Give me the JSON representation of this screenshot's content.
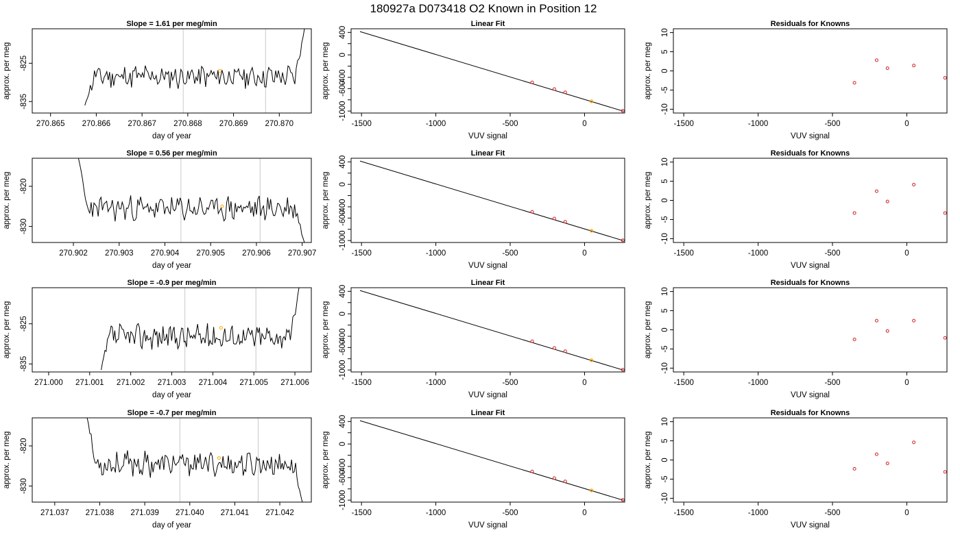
{
  "figure_title": "180927a     D073418   O2 Known in Position  12",
  "colors": {
    "trace": "#000000",
    "frame": "#000000",
    "vline": "#c8c8c8",
    "highlight": "#ffa500",
    "residual": "#d02020"
  },
  "chart_data": [
    {
      "type": "line",
      "panel": "time-series",
      "row": 0,
      "title": "Slope =  1.61  per meg/min",
      "xlabel": "day of year",
      "ylabel": "approx. per meg",
      "xlim": [
        270.8646,
        270.8707
      ],
      "ylim": [
        -838,
        -816
      ],
      "xticks": [
        270.865,
        270.866,
        270.867,
        270.868,
        270.869,
        270.87
      ],
      "xtick_labels": [
        "270.865",
        "270.866",
        "270.867",
        "270.868",
        "270.869",
        "270.870"
      ],
      "yticks": [
        -835,
        -825
      ],
      "ytick_labels": [
        "-835",
        "-825"
      ],
      "vlines": [
        270.8679,
        270.8697
      ],
      "trace": {
        "x_start": 270.86575,
        "x_end": 270.87055,
        "baseline": -828.5,
        "start_value": -836,
        "end_value": -816,
        "amplitude": 2.6,
        "seed": 11
      },
      "highlight_point": {
        "x": 270.8687,
        "y": -827
      }
    },
    {
      "type": "line",
      "panel": "linear-fit",
      "row": 0,
      "title": "Linear Fit",
      "xlabel": "VUV signal",
      "ylabel": "approx. per meg",
      "xlim": [
        -1570,
        270
      ],
      "ylim": [
        -1035,
        465
      ],
      "xticks": [
        -1500,
        -1000,
        -500,
        0
      ],
      "xtick_labels": [
        "-1500",
        "-1000",
        "-500",
        "0"
      ],
      "yticks": [
        -1000,
        -800,
        -600,
        -400,
        -200,
        0,
        200,
        400
      ],
      "ytick_labels": [
        "-1000",
        "",
        "-600",
        "-400",
        "",
        "0",
        "",
        "400"
      ],
      "line": {
        "x": [
          -1510,
          258
        ],
        "y": [
          415,
          -1000
        ]
      },
      "points": [
        {
          "x": -352,
          "y": -489,
          "color": "#d02020"
        },
        {
          "x": -203,
          "y": -608,
          "color": "#d02020"
        },
        {
          "x": -130,
          "y": -666,
          "color": "#d02020"
        },
        {
          "x": 257,
          "y": -996,
          "color": "#d02020"
        }
      ],
      "highlight_point": {
        "x": 47,
        "y": -826
      }
    },
    {
      "type": "scatter",
      "panel": "residuals",
      "row": 0,
      "title": "Residuals for Knowns",
      "xlabel": "VUV signal",
      "ylabel": "approx. per meg",
      "xlim": [
        -1570,
        270
      ],
      "ylim": [
        -11,
        11
      ],
      "xticks": [
        -1500,
        -1000,
        -500,
        0
      ],
      "xtick_labels": [
        "-1500",
        "-1000",
        "-500",
        "0"
      ],
      "yticks": [
        -10,
        -5,
        0,
        5,
        10
      ],
      "ytick_labels": [
        "-10",
        "-5",
        "0",
        "5",
        "10"
      ],
      "points": [
        {
          "x": -352,
          "y": -3.1
        },
        {
          "x": -203,
          "y": 2.8
        },
        {
          "x": -130,
          "y": 0.7
        },
        {
          "x": 47,
          "y": 1.4
        },
        {
          "x": 257,
          "y": -1.8
        }
      ]
    },
    {
      "type": "line",
      "panel": "time-series",
      "row": 1,
      "title": "Slope =  0.56  per meg/min",
      "xlabel": "day of year",
      "ylabel": "approx. per meg",
      "xlim": [
        270.9011,
        270.9072
      ],
      "ylim": [
        -834,
        -813
      ],
      "xticks": [
        270.902,
        270.903,
        270.904,
        270.905,
        270.906,
        270.907
      ],
      "xtick_labels": [
        "270.902",
        "270.903",
        "270.904",
        "270.905",
        "270.906",
        "270.907"
      ],
      "yticks": [
        -830,
        -820
      ],
      "ytick_labels": [
        "-830",
        "-820"
      ],
      "vlines": [
        270.90435,
        270.90608
      ],
      "trace": {
        "x_start": 270.90211,
        "x_end": 270.90705,
        "baseline": -825.5,
        "start_value": -813,
        "end_value": -834,
        "amplitude": 2.6,
        "seed": 23
      },
      "highlight_point": {
        "x": 270.90525,
        "y": -825
      }
    },
    {
      "type": "line",
      "panel": "linear-fit",
      "row": 1,
      "title": "Linear Fit",
      "xlabel": "VUV signal",
      "ylabel": "approx. per meg",
      "xlim": [
        -1570,
        270
      ],
      "ylim": [
        -1035,
        465
      ],
      "xticks": [
        -1500,
        -1000,
        -500,
        0
      ],
      "xtick_labels": [
        "-1500",
        "-1000",
        "-500",
        "0"
      ],
      "yticks": [
        -1000,
        -800,
        -600,
        -400,
        -200,
        0,
        200,
        400
      ],
      "ytick_labels": [
        "-1000",
        "",
        "-600",
        "-400",
        "",
        "0",
        "",
        "400"
      ],
      "line": {
        "x": [
          -1510,
          258
        ],
        "y": [
          415,
          -1000
        ]
      },
      "points": [
        {
          "x": -352,
          "y": -489,
          "color": "#d02020"
        },
        {
          "x": -203,
          "y": -608,
          "color": "#d02020"
        },
        {
          "x": -130,
          "y": -666,
          "color": "#d02020"
        },
        {
          "x": 257,
          "y": -996,
          "color": "#d02020"
        }
      ],
      "highlight_point": {
        "x": 47,
        "y": -826
      }
    },
    {
      "type": "scatter",
      "panel": "residuals",
      "row": 1,
      "title": "Residuals for Knowns",
      "xlabel": "VUV signal",
      "ylabel": "approx. per meg",
      "xlim": [
        -1570,
        270
      ],
      "ylim": [
        -11,
        11
      ],
      "xticks": [
        -1500,
        -1000,
        -500,
        0
      ],
      "xtick_labels": [
        "-1500",
        "-1000",
        "-500",
        "0"
      ],
      "yticks": [
        -10,
        -5,
        0,
        5,
        10
      ],
      "ytick_labels": [
        "-10",
        "-5",
        "0",
        "5",
        "10"
      ],
      "points": [
        {
          "x": -352,
          "y": -3.3
        },
        {
          "x": -203,
          "y": 2.4
        },
        {
          "x": -130,
          "y": -0.3
        },
        {
          "x": 47,
          "y": 4.1
        },
        {
          "x": 257,
          "y": -3.3
        }
      ]
    },
    {
      "type": "line",
      "panel": "time-series",
      "row": 2,
      "title": "Slope =  -0.9  per meg/min",
      "xlabel": "day of year",
      "ylabel": "approx. per meg",
      "xlim": [
        270.9996,
        271.0064
      ],
      "ylim": [
        -837,
        -816
      ],
      "xticks": [
        271.0,
        271.001,
        271.002,
        271.003,
        271.004,
        271.005,
        271.006
      ],
      "xtick_labels": [
        "271.000",
        "271.001",
        "271.002",
        "271.003",
        "271.004",
        "271.005",
        "271.006"
      ],
      "yticks": [
        -835,
        -825
      ],
      "ytick_labels": [
        "-835",
        "-825"
      ],
      "vlines": [
        271.00332,
        271.00505
      ],
      "trace": {
        "x_start": 271.00128,
        "x_end": 271.0061,
        "baseline": -828.2,
        "start_value": -836.5,
        "end_value": -816,
        "amplitude": 2.6,
        "seed": 37
      },
      "highlight_point": {
        "x": 271.0042,
        "y": -826
      }
    },
    {
      "type": "line",
      "panel": "linear-fit",
      "row": 2,
      "title": "Linear Fit",
      "xlabel": "VUV signal",
      "ylabel": "approx. per meg",
      "xlim": [
        -1570,
        270
      ],
      "ylim": [
        -1035,
        465
      ],
      "xticks": [
        -1500,
        -1000,
        -500,
        0
      ],
      "xtick_labels": [
        "-1500",
        "-1000",
        "-500",
        "0"
      ],
      "yticks": [
        -1000,
        -800,
        -600,
        -400,
        -200,
        0,
        200,
        400
      ],
      "ytick_labels": [
        "-1000",
        "",
        "-600",
        "-400",
        "",
        "0",
        "",
        "400"
      ],
      "line": {
        "x": [
          -1510,
          258
        ],
        "y": [
          415,
          -1000
        ]
      },
      "points": [
        {
          "x": -352,
          "y": -489,
          "color": "#d02020"
        },
        {
          "x": -203,
          "y": -608,
          "color": "#d02020"
        },
        {
          "x": -130,
          "y": -666,
          "color": "#d02020"
        },
        {
          "x": 257,
          "y": -996,
          "color": "#d02020"
        }
      ],
      "highlight_point": {
        "x": 47,
        "y": -826
      }
    },
    {
      "type": "scatter",
      "panel": "residuals",
      "row": 2,
      "title": "Residuals for Knowns",
      "xlabel": "VUV signal",
      "ylabel": "approx. per meg",
      "xlim": [
        -1570,
        270
      ],
      "ylim": [
        -11,
        11
      ],
      "xticks": [
        -1500,
        -1000,
        -500,
        0
      ],
      "xtick_labels": [
        "-1500",
        "-1000",
        "-500",
        "0"
      ],
      "yticks": [
        -10,
        -5,
        0,
        5,
        10
      ],
      "ytick_labels": [
        "-10",
        "-5",
        "0",
        "5",
        "10"
      ],
      "points": [
        {
          "x": -352,
          "y": -2.5
        },
        {
          "x": -203,
          "y": 2.4
        },
        {
          "x": -130,
          "y": -0.3
        },
        {
          "x": 47,
          "y": 2.4
        },
        {
          "x": 257,
          "y": -2.1
        }
      ]
    },
    {
      "type": "line",
      "panel": "time-series",
      "row": 3,
      "title": "Slope =  -0.7  per meg/min",
      "xlabel": "day of year",
      "ylabel": "approx. per meg",
      "xlim": [
        271.0365,
        271.0427
      ],
      "ylim": [
        -834,
        -813
      ],
      "xticks": [
        271.037,
        271.038,
        271.039,
        271.04,
        271.041,
        271.042
      ],
      "xtick_labels": [
        "271.037",
        "271.038",
        "271.039",
        "271.040",
        "271.041",
        "271.042"
      ],
      "yticks": [
        -830,
        -820
      ],
      "ytick_labels": [
        "-830",
        "-820"
      ],
      "vlines": [
        271.03978,
        271.04152
      ],
      "trace": {
        "x_start": 271.03772,
        "x_end": 271.0425,
        "baseline": -824.5,
        "start_value": -813,
        "end_value": -834,
        "amplitude": 2.6,
        "seed": 53
      },
      "highlight_point": {
        "x": 271.04065,
        "y": -823
      }
    },
    {
      "type": "line",
      "panel": "linear-fit",
      "row": 3,
      "title": "Linear Fit",
      "xlabel": "VUV signal",
      "ylabel": "approx. per meg",
      "xlim": [
        -1570,
        270
      ],
      "ylim": [
        -1035,
        465
      ],
      "xticks": [
        -1500,
        -1000,
        -500,
        0
      ],
      "xtick_labels": [
        "-1500",
        "-1000",
        "-500",
        "0"
      ],
      "yticks": [
        -1000,
        -800,
        -600,
        -400,
        -200,
        0,
        200,
        400
      ],
      "ytick_labels": [
        "-1000",
        "",
        "-600",
        "-400",
        "",
        "0",
        "",
        "400"
      ],
      "line": {
        "x": [
          -1510,
          258
        ],
        "y": [
          415,
          -1000
        ]
      },
      "points": [
        {
          "x": -352,
          "y": -489,
          "color": "#d02020"
        },
        {
          "x": -203,
          "y": -608,
          "color": "#d02020"
        },
        {
          "x": -130,
          "y": -666,
          "color": "#d02020"
        },
        {
          "x": 257,
          "y": -996,
          "color": "#d02020"
        }
      ],
      "highlight_point": {
        "x": 47,
        "y": -826
      }
    },
    {
      "type": "scatter",
      "panel": "residuals",
      "row": 3,
      "title": "Residuals for Knowns",
      "xlabel": "VUV signal",
      "ylabel": "approx. per meg",
      "xlim": [
        -1570,
        270
      ],
      "ylim": [
        -11,
        11
      ],
      "xticks": [
        -1500,
        -1000,
        -500,
        0
      ],
      "xtick_labels": [
        "-1500",
        "-1000",
        "-500",
        "0"
      ],
      "yticks": [
        -10,
        -5,
        0,
        5,
        10
      ],
      "ytick_labels": [
        "-10",
        "-5",
        "0",
        "5",
        "10"
      ],
      "points": [
        {
          "x": -352,
          "y": -2.3
        },
        {
          "x": -203,
          "y": 1.5
        },
        {
          "x": -130,
          "y": -0.9
        },
        {
          "x": 47,
          "y": 4.6
        },
        {
          "x": 257,
          "y": -3.1
        }
      ]
    }
  ]
}
